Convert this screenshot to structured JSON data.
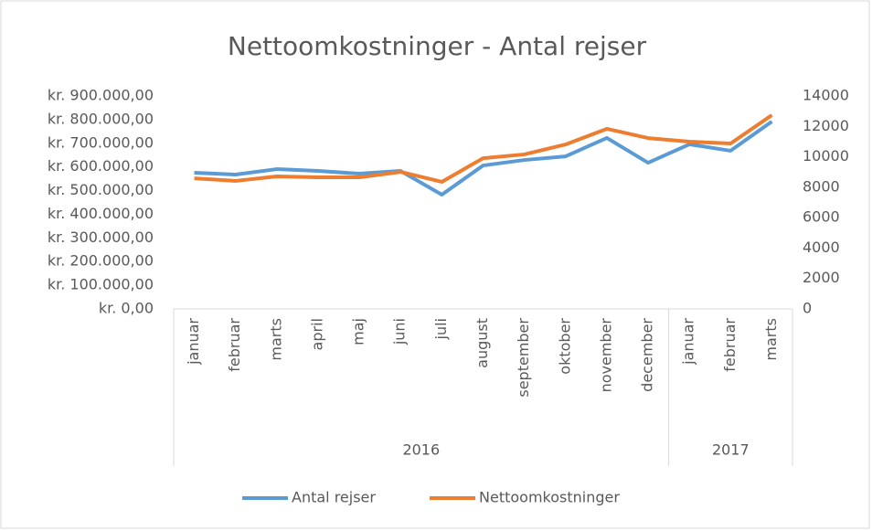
{
  "chart_data": {
    "type": "line",
    "title": "Nettoomkostninger - Antal rejser",
    "groups": [
      {
        "label": "2016",
        "categories": [
          "januar",
          "februar",
          "marts",
          "april",
          "maj",
          "juni",
          "juli",
          "august",
          "september",
          "oktober",
          "november",
          "december"
        ]
      },
      {
        "label": "2017",
        "categories": [
          "januar",
          "februar",
          "marts"
        ]
      }
    ],
    "series": [
      {
        "name": "Antal rejser",
        "color": "#5b9bd5",
        "axis": "y2",
        "values": [
          8950,
          8830,
          9190,
          9070,
          8890,
          9070,
          7510,
          9430,
          9790,
          10030,
          11240,
          9610,
          10820,
          10400,
          12320
        ]
      },
      {
        "name": "Nettoomkostninger",
        "color": "#ed7d31",
        "values": [
          552000,
          541000,
          560000,
          556000,
          556000,
          579000,
          537000,
          637000,
          653000,
          695000,
          761000,
          722000,
          707000,
          699000,
          819000
        ]
      }
    ],
    "ylim": [
      0,
      900000
    ],
    "yticks": [
      {
        "value": 0,
        "label": "kr. 0,00"
      },
      {
        "value": 100000,
        "label": "kr. 100.000,00"
      },
      {
        "value": 200000,
        "label": "kr. 200.000,00"
      },
      {
        "value": 300000,
        "label": "kr. 300.000,00"
      },
      {
        "value": 400000,
        "label": "kr. 400.000,00"
      },
      {
        "value": 500000,
        "label": "kr. 500.000,00"
      },
      {
        "value": 600000,
        "label": "kr. 600.000,00"
      },
      {
        "value": 700000,
        "label": "kr. 700.000,00"
      },
      {
        "value": 800000,
        "label": "kr. 800.000,00"
      },
      {
        "value": 900000,
        "label": "kr. 900.000,00"
      }
    ],
    "y2lim": [
      0,
      14000
    ],
    "y2ticks": [
      0,
      2000,
      4000,
      6000,
      8000,
      10000,
      12000,
      14000
    ],
    "grid": false,
    "legend": "bottom"
  }
}
